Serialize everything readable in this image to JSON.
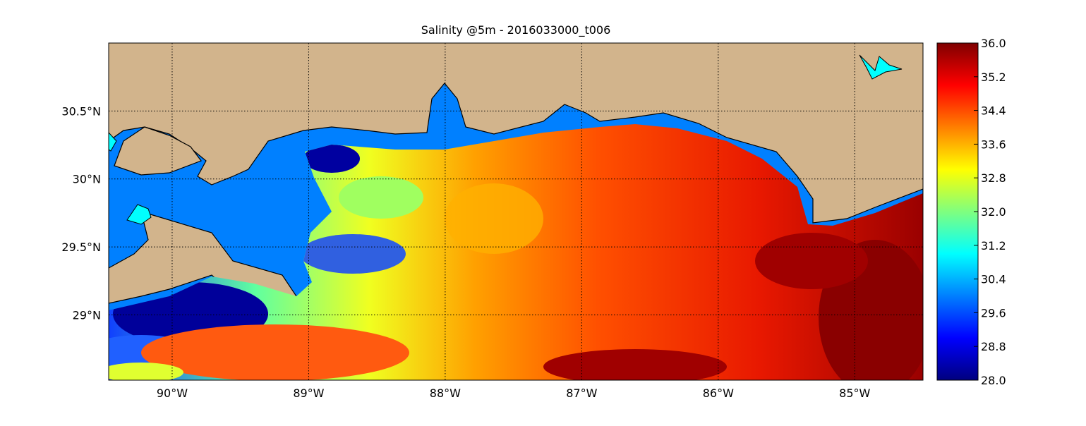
{
  "chart_data": {
    "type": "map",
    "title": "Salinity @5m - 2016033000_t006",
    "xlim": [
      -90.465,
      -84.5
    ],
    "ylim": [
      28.52,
      31.0
    ],
    "xticks": [
      {
        "value": -90,
        "label": "90°W"
      },
      {
        "value": -89,
        "label": "89°W"
      },
      {
        "value": -88,
        "label": "88°W"
      },
      {
        "value": -87,
        "label": "87°W"
      },
      {
        "value": -86,
        "label": "86°W"
      },
      {
        "value": -85,
        "label": "85°W"
      }
    ],
    "yticks": [
      {
        "value": 29,
        "label": "29°N"
      },
      {
        "value": 29.5,
        "label": "29.5°N"
      },
      {
        "value": 30,
        "label": "30°N"
      },
      {
        "value": 30.5,
        "label": "30.5°N"
      }
    ],
    "grid": true,
    "colorbar": {
      "lim": [
        28,
        36
      ],
      "ticks": [
        {
          "value": 28,
          "label": "28.0"
        },
        28.8,
        29.6,
        30.4,
        31.2,
        {
          "value": 32,
          "label": "32.0"
        },
        32.8,
        33.6,
        34.4,
        35.2,
        {
          "value": 36,
          "label": "36.0"
        }
      ],
      "colors": [
        "#00007f",
        "#0000ff",
        "#007fff",
        "#00ffff",
        "#7fff7f",
        "#ffff00",
        "#ff7f00",
        "#ff0000",
        "#7f0000"
      ]
    }
  }
}
